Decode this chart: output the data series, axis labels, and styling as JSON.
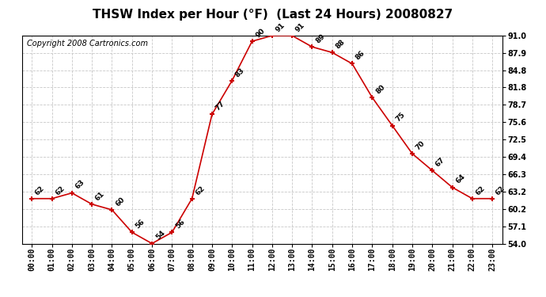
{
  "title": "THSW Index per Hour (°F)  (Last 24 Hours) 20080827",
  "copyright": "Copyright 2008 Cartronics.com",
  "hours": [
    0,
    1,
    2,
    3,
    4,
    5,
    6,
    7,
    8,
    9,
    10,
    11,
    12,
    13,
    14,
    15,
    16,
    17,
    18,
    19,
    20,
    21,
    22,
    23
  ],
  "values": [
    62,
    62,
    63,
    61,
    60,
    56,
    54,
    56,
    62,
    77,
    83,
    90,
    91,
    91,
    89,
    88,
    86,
    80,
    75,
    70,
    67,
    64,
    62,
    62
  ],
  "x_labels": [
    "00:00",
    "01:00",
    "02:00",
    "03:00",
    "04:00",
    "05:00",
    "06:00",
    "07:00",
    "08:00",
    "09:00",
    "10:00",
    "11:00",
    "12:00",
    "13:00",
    "14:00",
    "15:00",
    "16:00",
    "17:00",
    "18:00",
    "19:00",
    "20:00",
    "21:00",
    "22:00",
    "23:00"
  ],
  "y_ticks": [
    54.0,
    57.1,
    60.2,
    63.2,
    66.3,
    69.4,
    72.5,
    75.6,
    78.7,
    81.8,
    84.8,
    87.9,
    91.0
  ],
  "ylim": [
    54.0,
    91.0
  ],
  "line_color": "#cc0000",
  "marker_color": "#cc0000",
  "bg_color": "#ffffff",
  "plot_bg_color": "#ffffff",
  "grid_color": "#c8c8c8",
  "title_fontsize": 11,
  "copyright_fontsize": 7,
  "tick_fontsize": 7
}
